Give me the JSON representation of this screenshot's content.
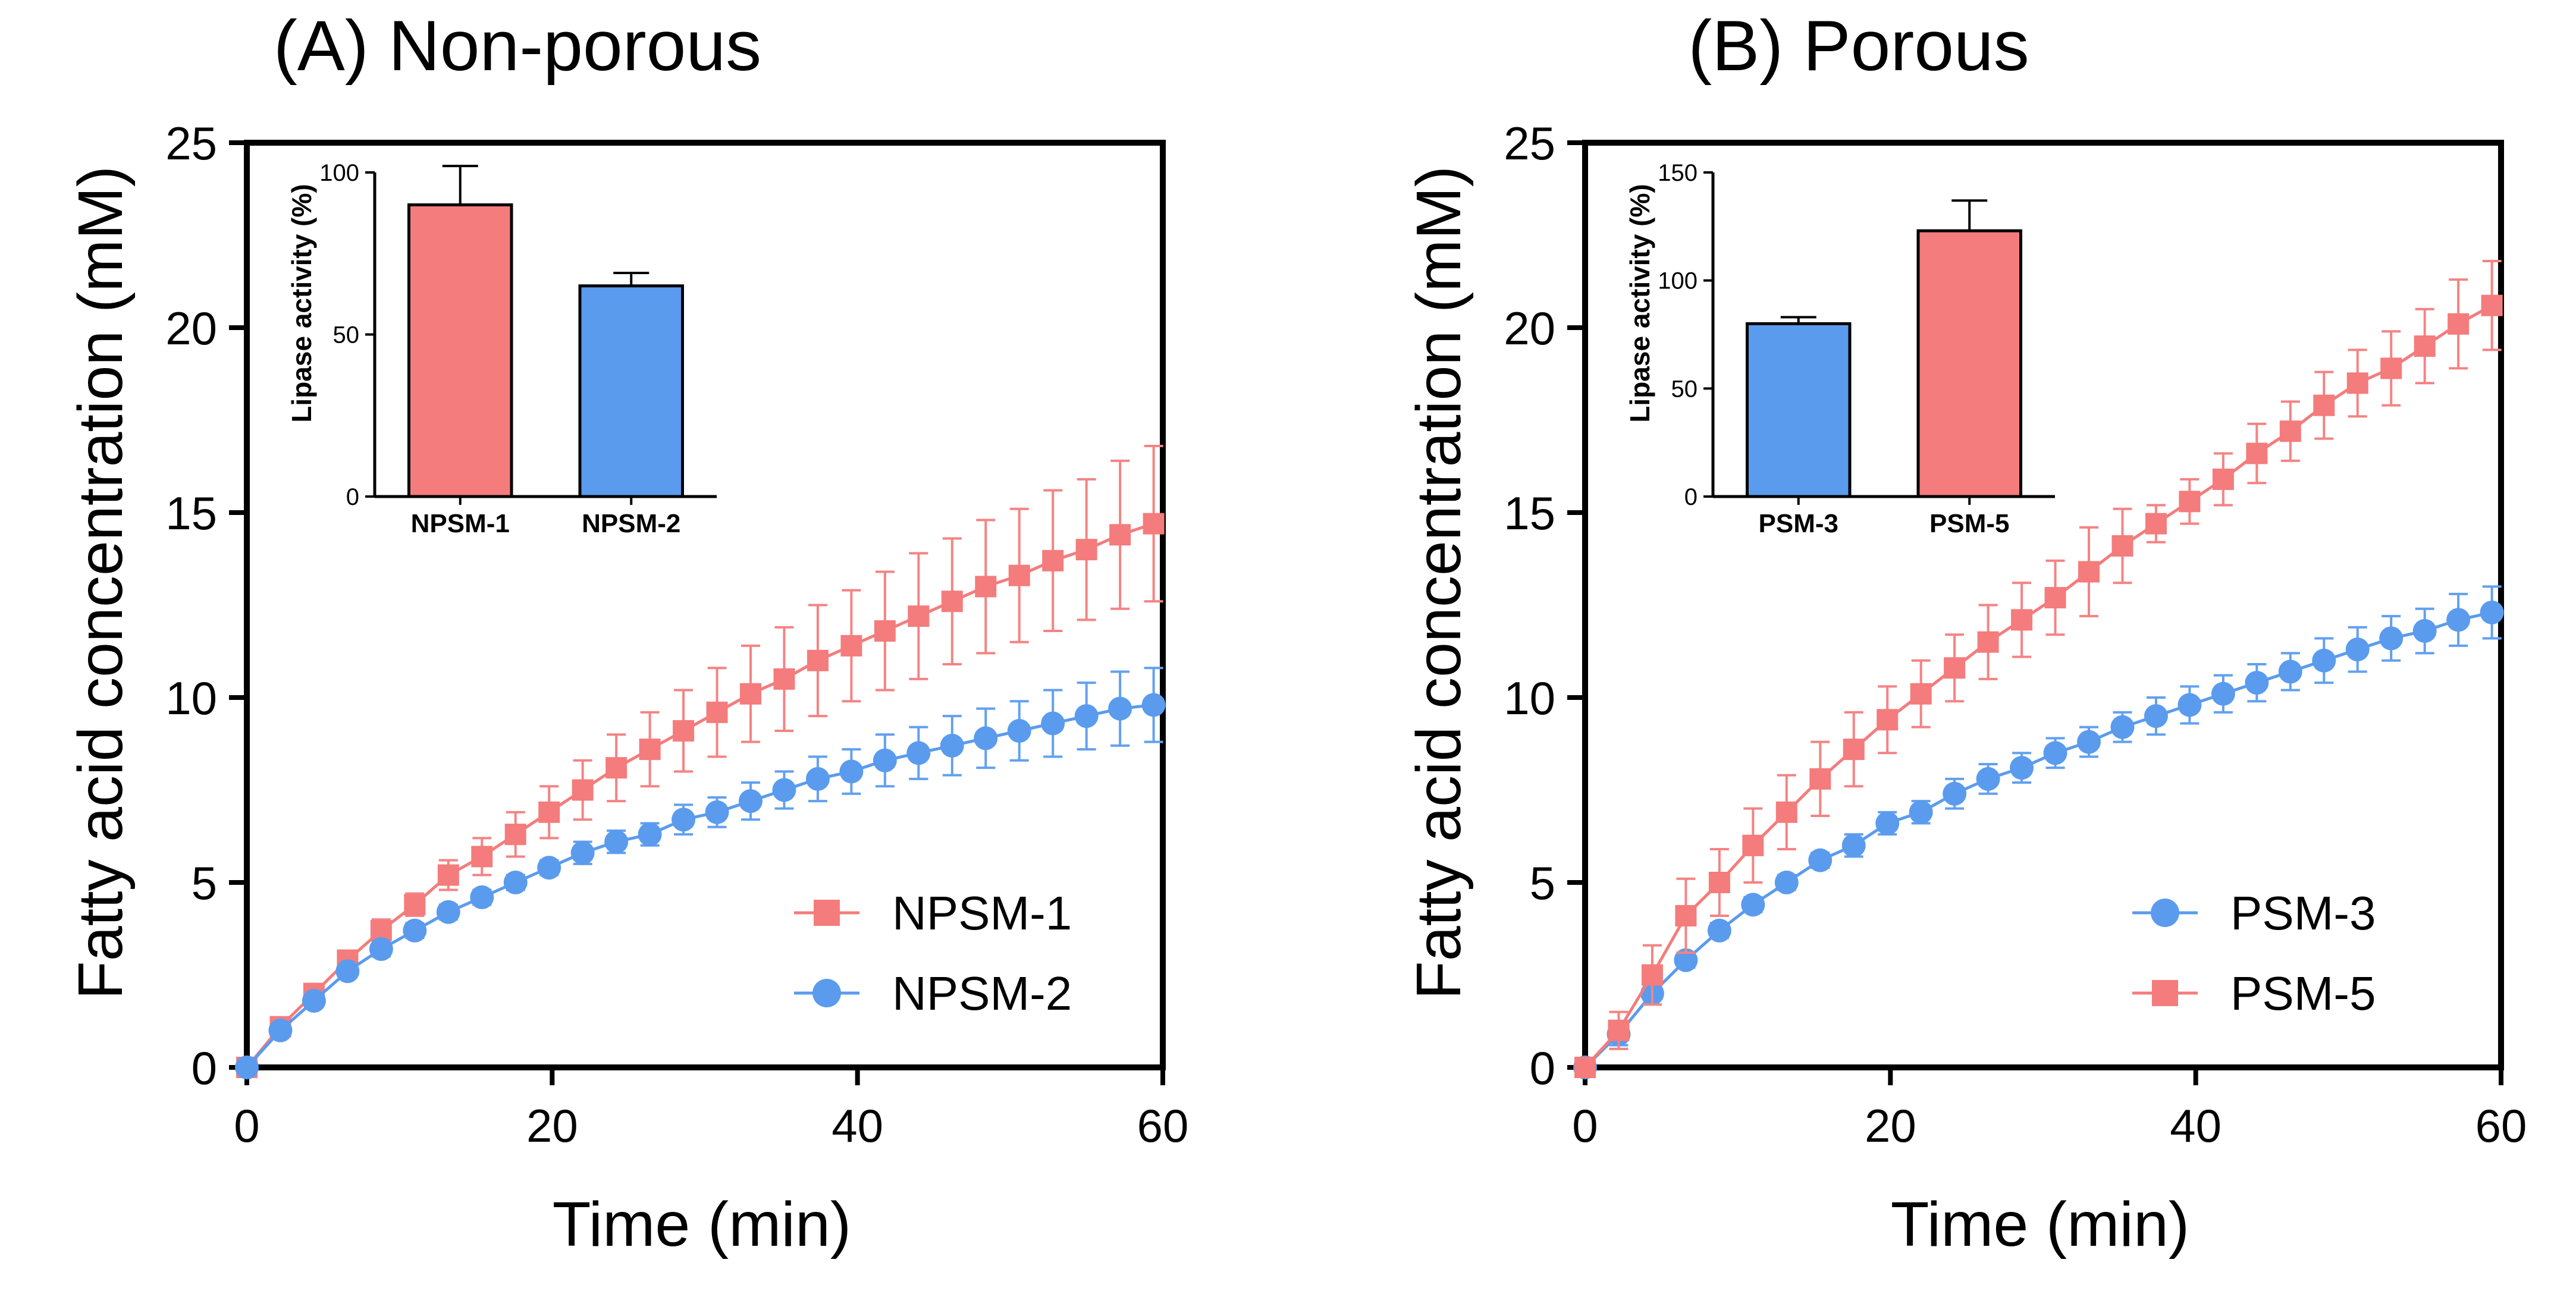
{
  "chart_data": [
    {
      "type": "line",
      "title": "(A) Non-porous",
      "xlabel": "Time (min)",
      "ylabel": "Fatty acid concentration (mM)",
      "xlim": [
        0,
        60
      ],
      "ylim": [
        0,
        25
      ],
      "x_ticks": [
        "0",
        "20",
        "40",
        "60"
      ],
      "y_ticks": [
        "0",
        "5",
        "10",
        "15",
        "20",
        "25"
      ],
      "legend_position": "bottom-right",
      "x": [
        0,
        2.2,
        4.4,
        6.6,
        8.8,
        11,
        13.2,
        15.4,
        17.6,
        19.8,
        22,
        24.2,
        26.4,
        28.6,
        30.8,
        33,
        35.2,
        37.4,
        39.6,
        41.8,
        44,
        46.2,
        48.4,
        50.6,
        52.8,
        55,
        57.2,
        59.4
      ],
      "series": [
        {
          "name": "NPSM-1",
          "color": "#f47c7c",
          "marker": "square",
          "values": [
            0,
            1.1,
            2.0,
            2.9,
            3.7,
            4.4,
            5.2,
            5.7,
            6.3,
            6.9,
            7.5,
            8.1,
            8.6,
            9.1,
            9.6,
            10.1,
            10.5,
            11.0,
            11.4,
            11.8,
            12.2,
            12.6,
            13.0,
            13.3,
            13.7,
            14.0,
            14.4,
            14.7
          ],
          "errors": [
            0,
            0.2,
            0.2,
            0.2,
            0.3,
            0.3,
            0.4,
            0.5,
            0.6,
            0.7,
            0.8,
            0.9,
            1.0,
            1.1,
            1.2,
            1.3,
            1.4,
            1.5,
            1.5,
            1.6,
            1.7,
            1.7,
            1.8,
            1.8,
            1.9,
            1.9,
            2.0,
            2.1
          ]
        },
        {
          "name": "NPSM-2",
          "color": "#5a9bee",
          "marker": "circle",
          "values": [
            0,
            1.0,
            1.8,
            2.6,
            3.2,
            3.7,
            4.2,
            4.6,
            5.0,
            5.4,
            5.8,
            6.1,
            6.3,
            6.7,
            6.9,
            7.2,
            7.5,
            7.8,
            8.0,
            8.3,
            8.5,
            8.7,
            8.9,
            9.1,
            9.3,
            9.5,
            9.7,
            9.8
          ],
          "errors": [
            0,
            0.1,
            0.1,
            0.1,
            0.2,
            0.2,
            0.2,
            0.2,
            0.2,
            0.2,
            0.3,
            0.3,
            0.3,
            0.4,
            0.4,
            0.5,
            0.5,
            0.6,
            0.6,
            0.7,
            0.7,
            0.8,
            0.8,
            0.8,
            0.9,
            0.9,
            1.0,
            1.0
          ]
        }
      ],
      "inset": {
        "type": "bar",
        "ylabel": "Lipase activity (%)",
        "ylim": [
          0,
          100
        ],
        "y_ticks": [
          "0",
          "50",
          "100"
        ],
        "categories": [
          "NPSM-1",
          "NPSM-2"
        ],
        "values": [
          90,
          65
        ],
        "errors": [
          12,
          4
        ],
        "colors": [
          "#f47c7c",
          "#5a9bee"
        ]
      }
    },
    {
      "type": "line",
      "title": "(B) Porous",
      "xlabel": "Time (min)",
      "ylabel": "Fatty acid concentration (mM)",
      "xlim": [
        0,
        60
      ],
      "ylim": [
        0,
        25
      ],
      "x_ticks": [
        "0",
        "20",
        "40",
        "60"
      ],
      "y_ticks": [
        "0",
        "5",
        "10",
        "15",
        "20",
        "25"
      ],
      "legend_position": "bottom-right",
      "x": [
        0,
        2.2,
        4.4,
        6.6,
        8.8,
        11,
        13.2,
        15.4,
        17.6,
        19.8,
        22,
        24.2,
        26.4,
        28.6,
        30.8,
        33,
        35.2,
        37.4,
        39.6,
        41.8,
        44,
        46.2,
        48.4,
        50.6,
        52.8,
        55,
        57.2,
        59.4
      ],
      "series": [
        {
          "name": "PSM-3",
          "color": "#5a9bee",
          "marker": "circle",
          "values": [
            0,
            0.9,
            2.0,
            2.9,
            3.7,
            4.4,
            5.0,
            5.6,
            6.0,
            6.6,
            6.9,
            7.4,
            7.8,
            8.1,
            8.5,
            8.8,
            9.2,
            9.5,
            9.8,
            10.1,
            10.4,
            10.7,
            11.0,
            11.3,
            11.6,
            11.8,
            12.1,
            12.3
          ],
          "errors": [
            0,
            0.3,
            0.3,
            0.2,
            0.2,
            0.2,
            0.2,
            0.2,
            0.3,
            0.3,
            0.3,
            0.4,
            0.4,
            0.4,
            0.4,
            0.4,
            0.4,
            0.5,
            0.5,
            0.5,
            0.5,
            0.5,
            0.6,
            0.6,
            0.6,
            0.6,
            0.7,
            0.7
          ]
        },
        {
          "name": "PSM-5",
          "color": "#f47c7c",
          "marker": "square",
          "values": [
            0,
            1.0,
            2.5,
            4.1,
            5.0,
            6.0,
            6.9,
            7.8,
            8.6,
            9.4,
            10.1,
            10.8,
            11.5,
            12.1,
            12.7,
            13.4,
            14.1,
            14.7,
            15.3,
            15.9,
            16.6,
            17.2,
            17.9,
            18.5,
            18.9,
            19.5,
            20.1,
            20.6
          ],
          "errors": [
            0,
            0.5,
            0.8,
            1.0,
            0.9,
            1.0,
            1.0,
            1.0,
            1.0,
            0.9,
            0.9,
            0.9,
            1.0,
            1.0,
            1.0,
            1.2,
            1.0,
            0.5,
            0.6,
            0.7,
            0.8,
            0.8,
            0.9,
            0.9,
            1.0,
            1.0,
            1.2,
            1.2
          ]
        }
      ],
      "inset": {
        "type": "bar",
        "ylabel": "Lipase activity (%)",
        "ylim": [
          0,
          150
        ],
        "y_ticks": [
          "0",
          "50",
          "100",
          "150"
        ],
        "categories": [
          "PSM-3",
          "PSM-5"
        ],
        "values": [
          80,
          123
        ],
        "errors": [
          3,
          14
        ],
        "colors": [
          "#5a9bee",
          "#f47c7c"
        ]
      }
    }
  ]
}
